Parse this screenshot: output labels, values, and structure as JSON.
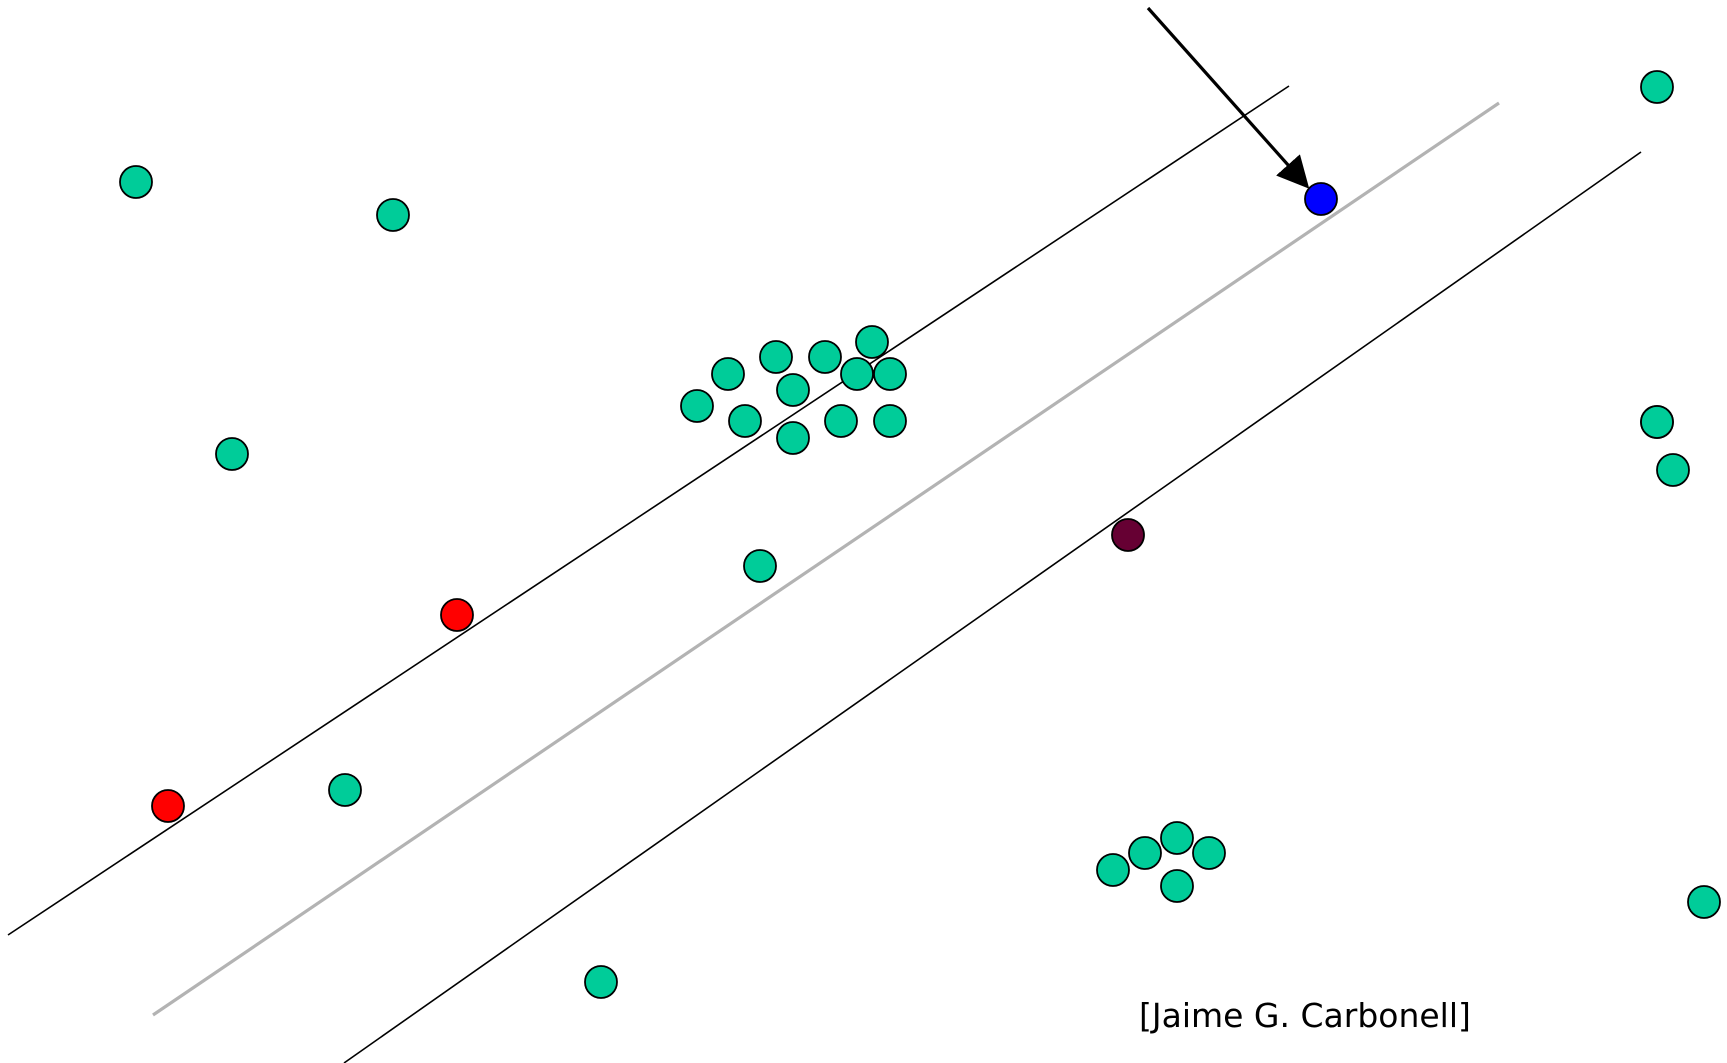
{
  "credit": "[Jaime G. Carbonell]",
  "colors": {
    "background": "#ffffff",
    "point_default": "#00cc99",
    "point_red": "#ff0000",
    "point_blue": "#0000ff",
    "point_dark": "#660033",
    "margin_line": "#000000",
    "center_line": "#b3b3b3",
    "arrow": "#000000"
  },
  "points": [
    {
      "kind": "default"
    },
    {
      "kind": "default"
    },
    {
      "kind": "default"
    },
    {
      "kind": "default"
    },
    {
      "kind": "default"
    },
    {
      "kind": "default"
    },
    {
      "kind": "default"
    },
    {
      "kind": "default"
    },
    {
      "kind": "default"
    },
    {
      "kind": "default"
    },
    {
      "kind": "default"
    },
    {
      "kind": "default"
    },
    {
      "kind": "default"
    },
    {
      "kind": "default"
    },
    {
      "kind": "default"
    },
    {
      "kind": "default"
    },
    {
      "kind": "default"
    },
    {
      "kind": "default"
    },
    {
      "kind": "default"
    },
    {
      "kind": "default"
    },
    {
      "kind": "default"
    },
    {
      "kind": "default"
    },
    {
      "kind": "default"
    },
    {
      "kind": "default"
    },
    {
      "kind": "default"
    },
    {
      "kind": "default"
    },
    {
      "kind": "default"
    },
    {
      "kind": "default"
    },
    {
      "kind": "red"
    },
    {
      "kind": "red"
    },
    {
      "kind": "blue"
    },
    {
      "kind": "dark"
    }
  ]
}
